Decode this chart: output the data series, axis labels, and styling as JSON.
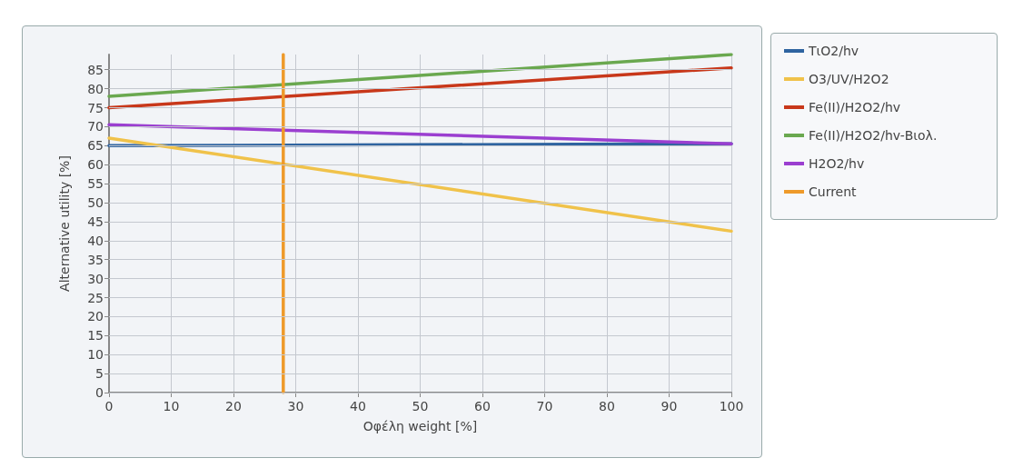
{
  "chart_data": {
    "type": "line",
    "xlabel": "Οφέλη weight [%]",
    "ylabel": "Alternative utility [%]",
    "xlim": [
      0,
      100
    ],
    "xticks": [
      0,
      10,
      20,
      30,
      40,
      50,
      60,
      70,
      80,
      90,
      100
    ],
    "ylim": [
      0,
      89
    ],
    "yticks": [
      0,
      5,
      10,
      15,
      20,
      25,
      30,
      35,
      40,
      45,
      50,
      55,
      60,
      65,
      70,
      75,
      80,
      85
    ],
    "grid": true,
    "legend": "right",
    "marker": "none",
    "line_style": "solid",
    "series": [
      {
        "name": "TιO2/hv",
        "color": "#2f64a0",
        "x": [
          0,
          100
        ],
        "values": [
          65,
          65.5
        ]
      },
      {
        "name": "O3/UV/H2O2",
        "color": "#f0c24a",
        "x": [
          0,
          100
        ],
        "values": [
          67,
          42.5
        ]
      },
      {
        "name": "Fe(II)/H2O2/hv",
        "color": "#c8381a",
        "x": [
          0,
          100
        ],
        "values": [
          75,
          85.5
        ]
      },
      {
        "name": "Fe(II)/H2O2/hv-Βιολ.",
        "color": "#6aa84f",
        "x": [
          0,
          100
        ],
        "values": [
          78,
          89
        ]
      },
      {
        "name": "H2O2/hv",
        "color": "#9b3fd0",
        "x": [
          0,
          100
        ],
        "values": [
          70.5,
          65.5
        ]
      },
      {
        "name": "Current",
        "color": "#ee9a2a",
        "x": [
          28,
          28
        ],
        "values": [
          0,
          89
        ]
      }
    ]
  }
}
